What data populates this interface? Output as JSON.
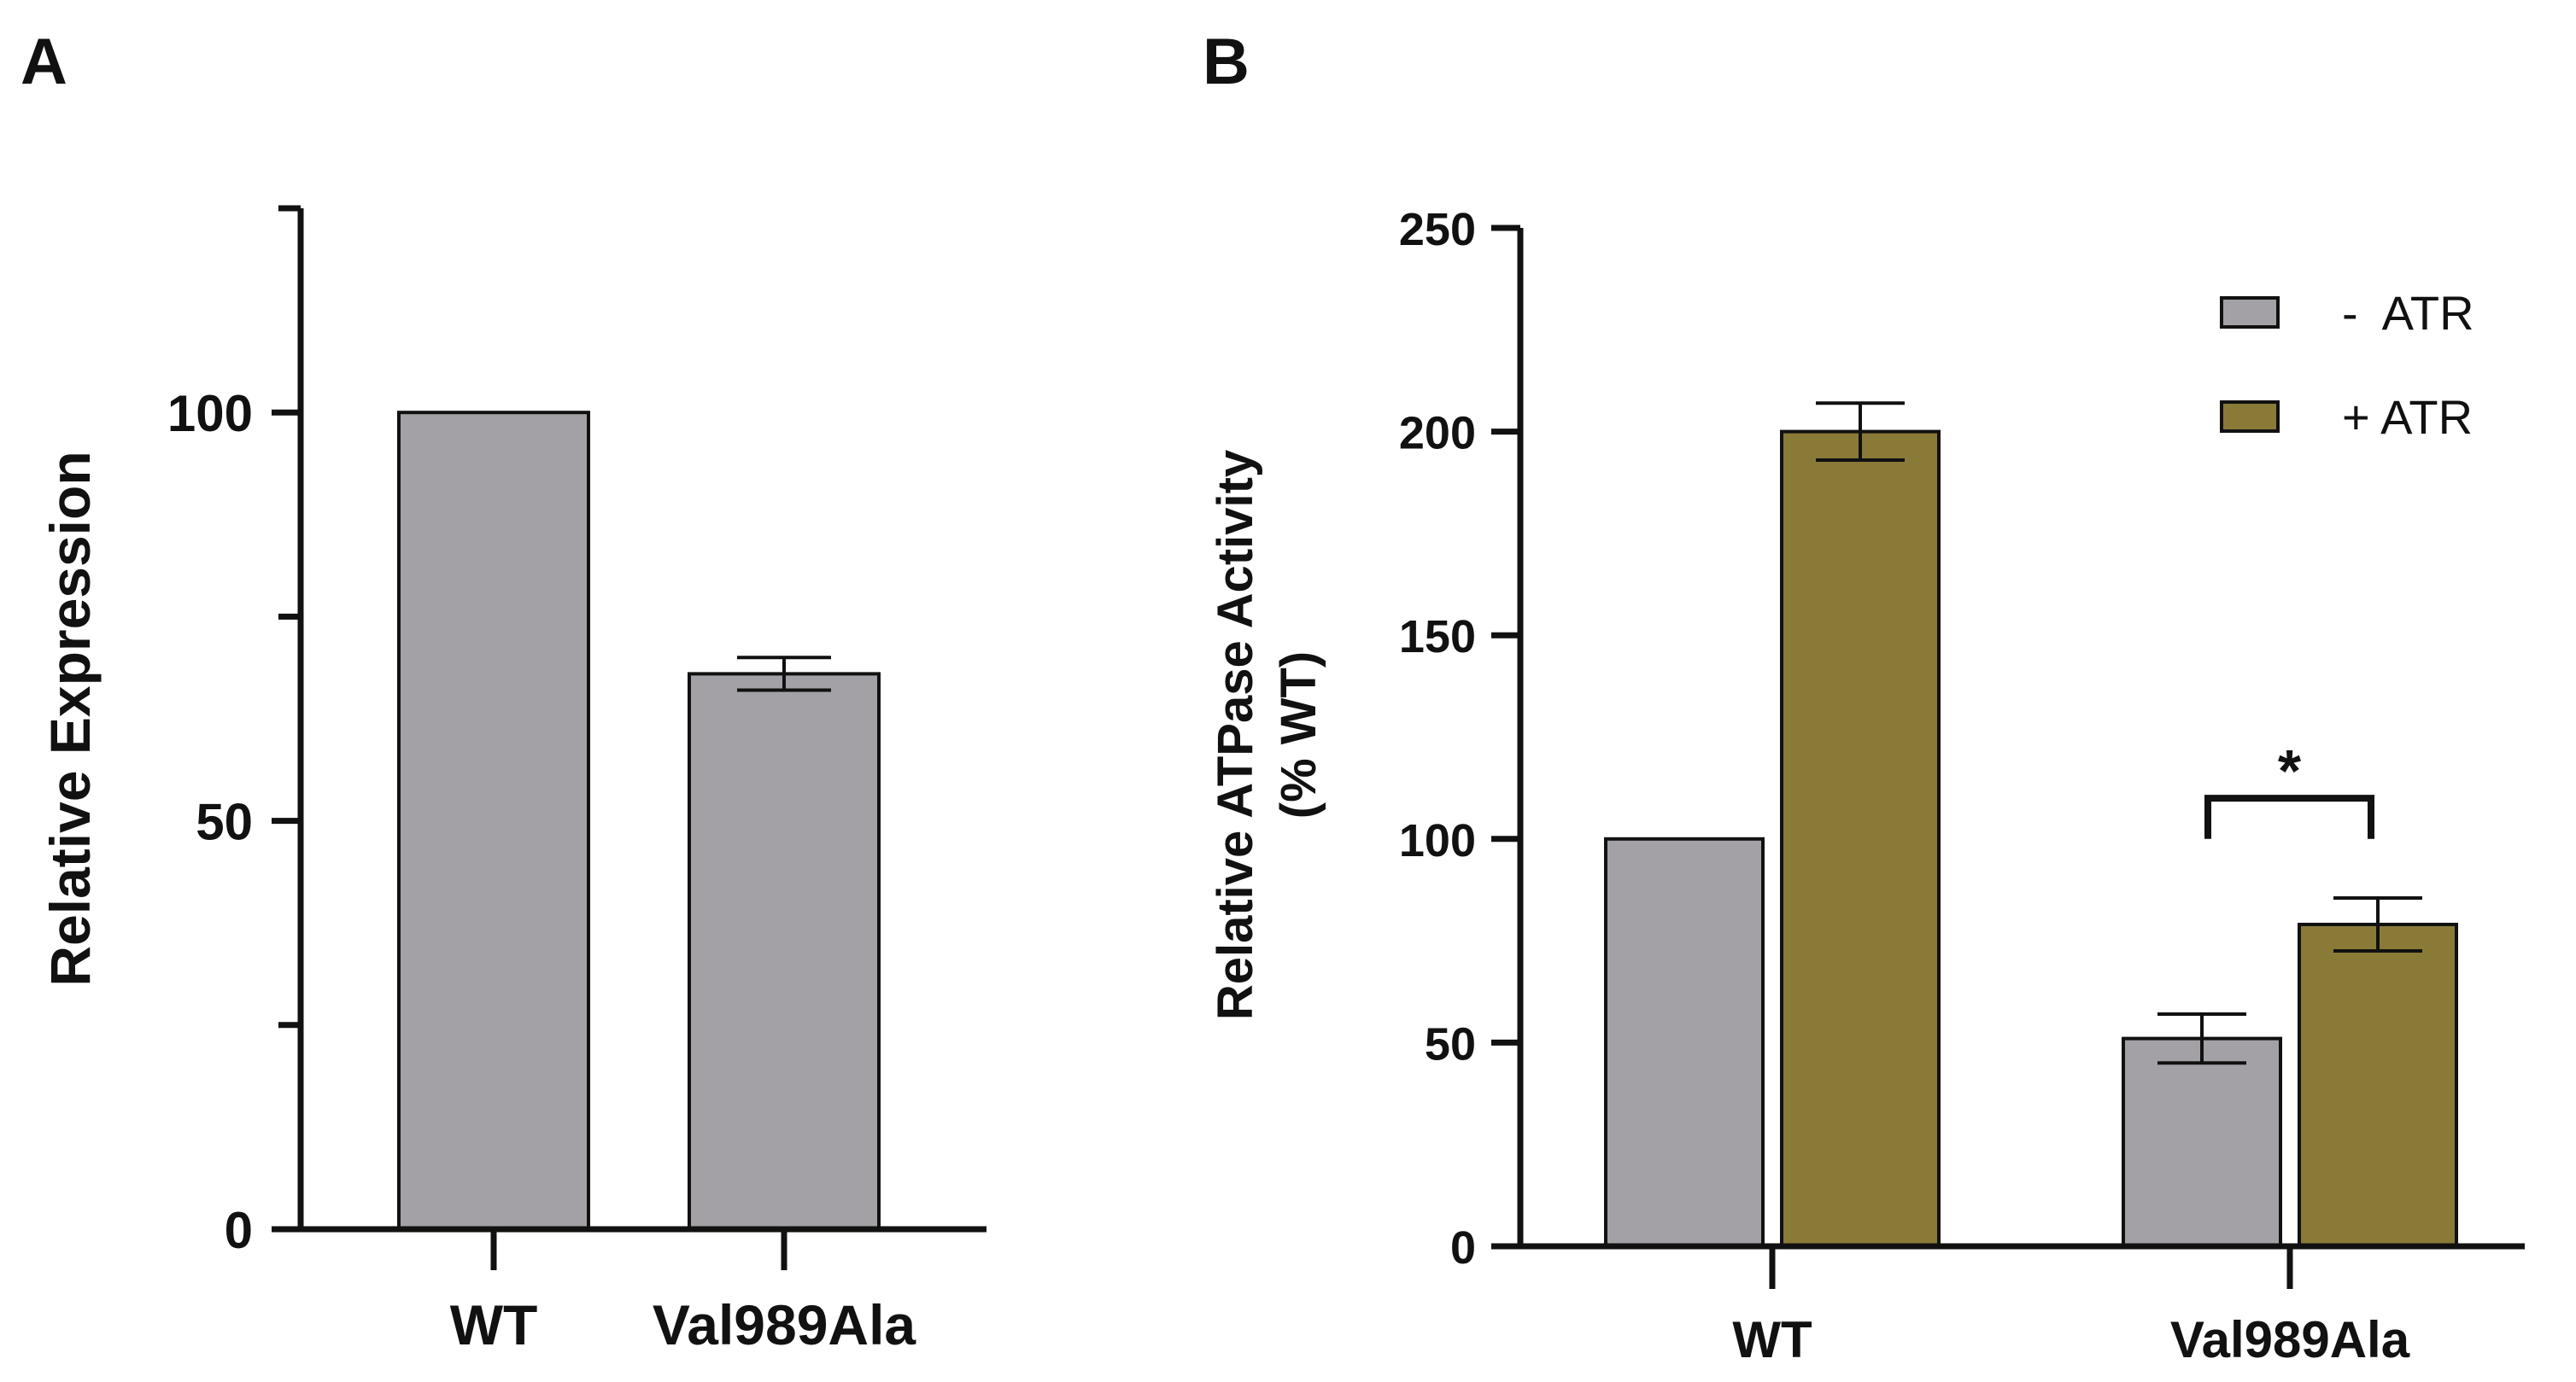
{
  "panel_labels": {
    "a": "A",
    "b": "B"
  },
  "chart_data": [
    {
      "panel": "A",
      "type": "bar",
      "title": "",
      "xlabel": "",
      "ylabel": "Relative Expression",
      "ylim": [
        0,
        125
      ],
      "yticks_major": [
        0,
        50,
        100
      ],
      "yticks_minor": [
        25,
        75,
        125
      ],
      "grid": false,
      "categories": [
        "WT",
        "Val989Ala"
      ],
      "series": [
        {
          "name": "",
          "color": "#a3a1a5",
          "values": [
            100,
            68
          ],
          "errors": [
            0,
            2
          ]
        }
      ]
    },
    {
      "panel": "B",
      "type": "bar",
      "title": "",
      "xlabel": "",
      "ylabel": "Relative ATPase Activity",
      "ylabel2": "(% WT)",
      "ylim": [
        0,
        250
      ],
      "yticks_major": [
        0,
        50,
        100,
        150,
        200,
        250
      ],
      "grid": false,
      "legend_position": "top-right",
      "categories": [
        "WT",
        "Val989Ala"
      ],
      "series": [
        {
          "name": "-  ATR",
          "color": "#a3a1a5",
          "values": [
            100,
            51
          ],
          "errors": [
            0,
            6
          ]
        },
        {
          "name": "+ ATR",
          "color": "#8a7a38",
          "values": [
            200,
            79
          ],
          "errors": [
            7,
            6.5
          ]
        }
      ],
      "annotations": [
        {
          "text": "*",
          "category": "Val989Ala",
          "type": "significance-bracket"
        }
      ]
    }
  ]
}
